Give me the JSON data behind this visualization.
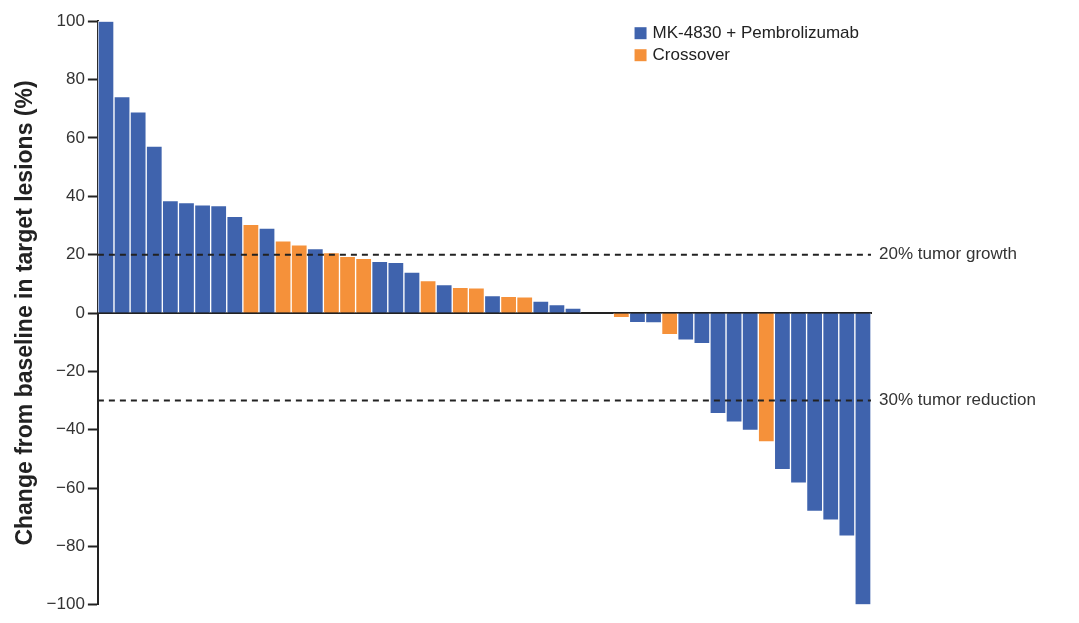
{
  "chart_data": {
    "type": "bar",
    "ylabel": "Change from baseline in target lesions (%)",
    "categories": [
      null,
      null,
      null,
      null,
      null,
      null,
      null,
      null,
      null,
      null,
      null,
      null,
      null,
      null,
      null,
      null,
      null,
      null,
      null,
      null,
      null,
      null,
      null,
      null,
      null,
      null,
      null,
      null,
      null,
      null,
      null,
      null,
      null,
      null,
      null,
      null,
      null,
      null,
      null,
      null,
      null,
      null,
      null,
      null,
      null,
      null,
      null,
      null
    ],
    "series": [
      {
        "name": "MK-4830 + Pembrolizumab",
        "color": "#3f63ad",
        "values": [
          100,
          74.2,
          68.9,
          57.2,
          38.5,
          37.8,
          37.1,
          36.8,
          33.1,
          null,
          29.1,
          null,
          null,
          22.1,
          null,
          null,
          null,
          17.7,
          17.4,
          14.0,
          null,
          9.7,
          null,
          null,
          6.0,
          null,
          null,
          4.1,
          2.9,
          1.7,
          0,
          0,
          null,
          -3.3,
          -3.4,
          null,
          -9.3,
          -10.5,
          -34.5,
          -37.4,
          -40.2,
          null,
          -53.7,
          -58.3,
          -68.0,
          -71.0,
          -76.5,
          -100
        ]
      },
      {
        "name": "Crossover",
        "color": "#f5913a",
        "values": [
          null,
          null,
          null,
          null,
          null,
          null,
          null,
          null,
          null,
          30.4,
          null,
          24.7,
          23.4,
          null,
          20.7,
          19.4,
          18.7,
          null,
          null,
          null,
          11.1,
          null,
          8.8,
          8.6,
          null,
          5.7,
          5.5,
          null,
          null,
          null,
          null,
          null,
          -1.6,
          null,
          null,
          -7.4,
          null,
          null,
          null,
          null,
          null,
          -44.2,
          null,
          null,
          null,
          null,
          null,
          null
        ]
      }
    ],
    "ylim": [
      -100,
      100
    ],
    "yticks": [
      -100,
      -80,
      -60,
      -40,
      -20,
      0,
      20,
      40,
      60,
      80,
      100
    ],
    "ref_lines": [
      {
        "axis": "y",
        "value": 20,
        "label": "20% tumor growth",
        "line_style": "dashed"
      },
      {
        "axis": "y",
        "value": -30,
        "label": "30% tumor reduction",
        "line_style": "dashed"
      }
    ],
    "legend": "top right",
    "grid": false,
    "tick_labels": "y"
  }
}
